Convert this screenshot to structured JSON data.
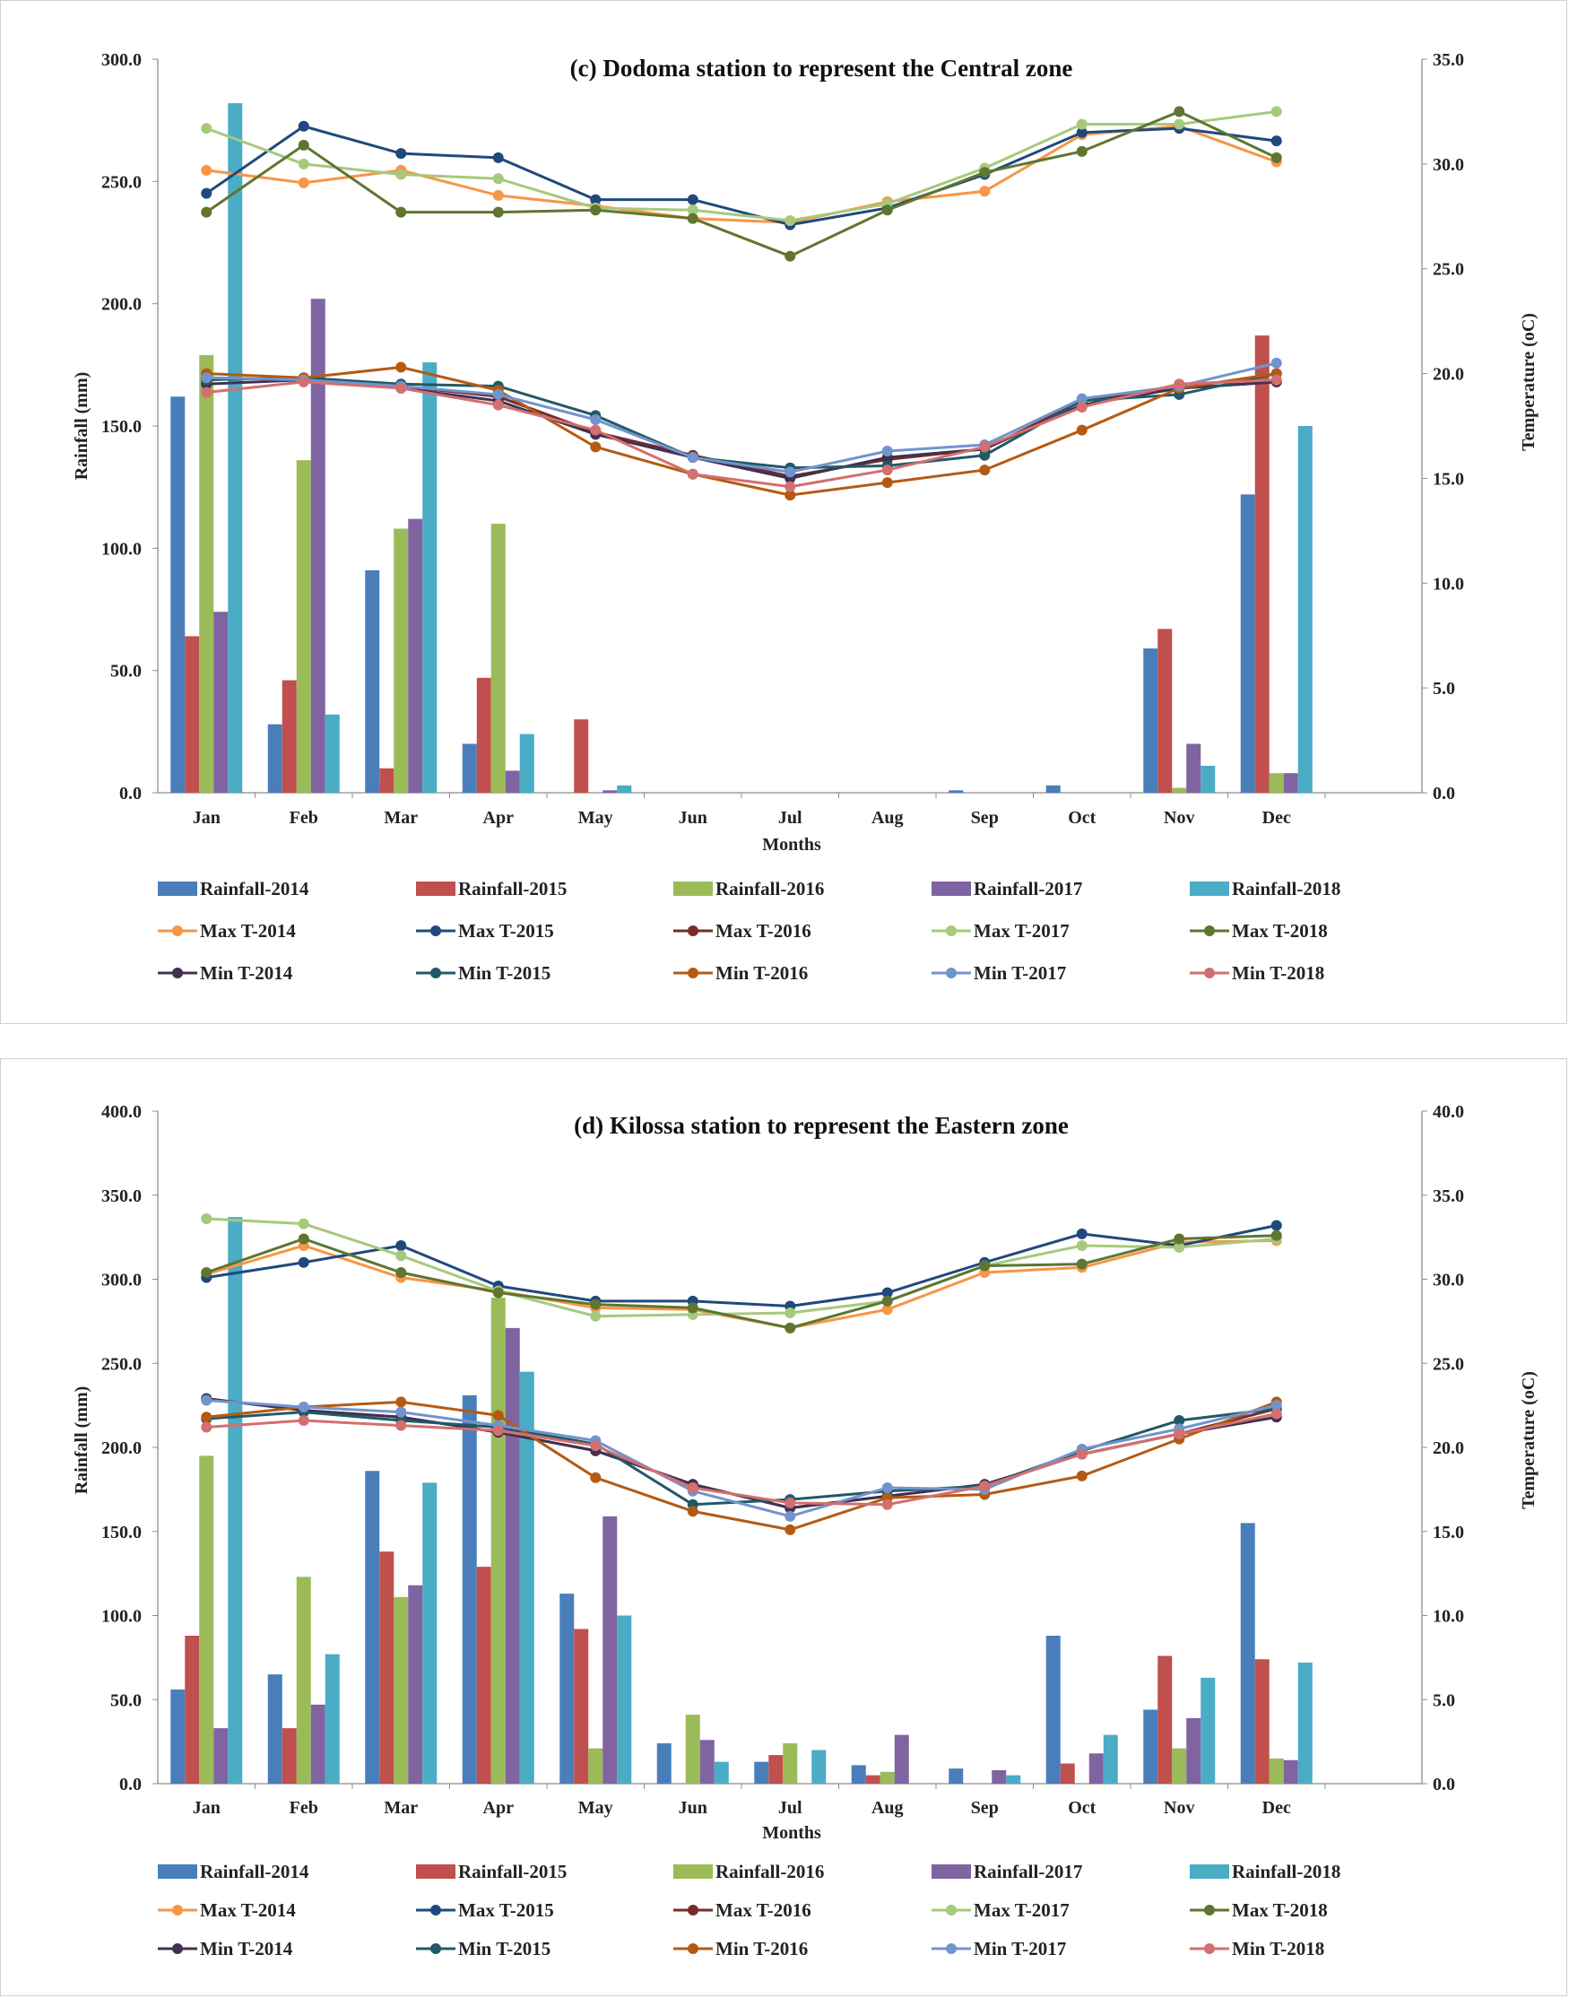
{
  "chart_data": [
    {
      "type": "bar",
      "title": "(c) Dodoma station to represent the Central zone",
      "xlabel": "Months",
      "ylabel": "Rainfall (mm)",
      "y2label": "Temperature (oC)",
      "ylim": [
        0,
        300
      ],
      "y2lim": [
        0,
        35
      ],
      "yticks": [
        "0.0",
        "50.0",
        "100.0",
        "150.0",
        "200.0",
        "250.0",
        "300.0"
      ],
      "y2ticks": [
        "0.0",
        "5.0",
        "10.0",
        "15.0",
        "20.0",
        "25.0",
        "30.0",
        "35.0"
      ],
      "categories": [
        "Jan",
        "Feb",
        "Mar",
        "Apr",
        "May",
        "Jun",
        "Jul",
        "Aug",
        "Sep",
        "Oct",
        "Nov",
        "Dec"
      ],
      "legend_position": "bottom",
      "bar_series": [
        {
          "name": "Rainfall-2014",
          "color": "#4a7ebb",
          "values": [
            162,
            28,
            91,
            20,
            0,
            0,
            0,
            0,
            1,
            3,
            59,
            122
          ]
        },
        {
          "name": "Rainfall-2015",
          "color": "#c0504d",
          "values": [
            64,
            46,
            10,
            47,
            30,
            0,
            0,
            0,
            0,
            0,
            67,
            187
          ]
        },
        {
          "name": "Rainfall-2016",
          "color": "#9bbb59",
          "values": [
            179,
            136,
            108,
            110,
            0,
            0,
            0,
            0,
            0,
            0,
            2,
            8
          ]
        },
        {
          "name": "Rainfall-2017",
          "color": "#8064a2",
          "values": [
            74,
            202,
            112,
            9,
            1,
            0,
            0,
            0,
            0,
            0,
            20,
            8
          ]
        },
        {
          "name": "Rainfall-2018",
          "color": "#4bacc6",
          "values": [
            282,
            32,
            176,
            24,
            3,
            0,
            0,
            0,
            0,
            0,
            11,
            150
          ]
        }
      ],
      "line_series": [
        {
          "name": "Max T-2014",
          "color": "#f79646",
          "values": [
            29.7,
            29.1,
            29.7,
            28.5,
            28.0,
            27.4,
            27.2,
            28.2,
            28.7,
            31.4,
            31.8,
            30.1
          ]
        },
        {
          "name": "Max T-2015",
          "color": "#1f497d",
          "values": [
            28.6,
            31.8,
            30.5,
            30.3,
            28.3,
            28.3,
            27.1,
            27.9,
            29.5,
            31.5,
            31.7,
            31.1
          ]
        },
        {
          "name": "Max T-2016",
          "color": "#772c2a",
          "values": [
            19.8,
            19.7,
            19.4,
            18.9,
            17.2,
            16.1,
            15.1,
            15.9,
            16.4,
            18.7,
            19.3,
            19.6
          ]
        },
        {
          "name": "Max T-2017",
          "color": "#a6c97c",
          "values": [
            31.7,
            30.0,
            29.5,
            29.3,
            27.9,
            27.8,
            27.3,
            28.1,
            29.8,
            31.9,
            31.9,
            32.5
          ]
        },
        {
          "name": "Max T-2018",
          "color": "#5f7530",
          "values": [
            27.7,
            30.9,
            27.7,
            27.7,
            27.8,
            27.4,
            25.6,
            27.8,
            29.6,
            30.6,
            32.5,
            30.3
          ]
        },
        {
          "name": "Min T-2014",
          "color": "#403152",
          "values": [
            19.5,
            19.7,
            19.3,
            18.7,
            17.1,
            16.0,
            15.0,
            16.0,
            16.4,
            18.5,
            19.3,
            19.6
          ]
        },
        {
          "name": "Min T-2015",
          "color": "#215968",
          "values": [
            19.7,
            19.8,
            19.5,
            19.4,
            18.0,
            16.0,
            15.5,
            15.6,
            16.1,
            18.7,
            19.0,
            20.0
          ]
        },
        {
          "name": "Min T-2016",
          "color": "#b55a12",
          "values": [
            20.0,
            19.8,
            20.3,
            19.2,
            16.5,
            15.2,
            14.2,
            14.8,
            15.4,
            17.3,
            19.3,
            20.0
          ]
        },
        {
          "name": "Min T-2017",
          "color": "#7194cd",
          "values": [
            19.8,
            19.7,
            19.4,
            19.0,
            17.8,
            16.0,
            15.3,
            16.3,
            16.6,
            18.8,
            19.4,
            20.5
          ]
        },
        {
          "name": "Min T-2018",
          "color": "#d36f6f",
          "values": [
            19.1,
            19.6,
            19.3,
            18.5,
            17.3,
            15.2,
            14.6,
            15.4,
            16.5,
            18.4,
            19.5,
            19.7
          ]
        }
      ]
    },
    {
      "type": "bar",
      "title": "(d) Kilossa station to represent the Eastern zone",
      "xlabel": "Months",
      "ylabel": "Rainfall (mm)",
      "y2label": "Temperature (oC)",
      "ylim": [
        0,
        400
      ],
      "y2lim": [
        0,
        40
      ],
      "yticks": [
        "0.0",
        "50.0",
        "100.0",
        "150.0",
        "200.0",
        "250.0",
        "300.0",
        "350.0",
        "400.0"
      ],
      "y2ticks": [
        "0.0",
        "5.0",
        "10.0",
        "15.0",
        "20.0",
        "25.0",
        "30.0",
        "35.0",
        "40.0"
      ],
      "categories": [
        "Jan",
        "Feb",
        "Mar",
        "Apr",
        "May",
        "Jun",
        "Jul",
        "Aug",
        "Sep",
        "Oct",
        "Nov",
        "Dec"
      ],
      "legend_position": "bottom",
      "bar_series": [
        {
          "name": "Rainfall-2014",
          "color": "#4a7ebb",
          "values": [
            56,
            65,
            186,
            231,
            113,
            24,
            13,
            11,
            9,
            88,
            44,
            155
          ]
        },
        {
          "name": "Rainfall-2015",
          "color": "#c0504d",
          "values": [
            88,
            33,
            138,
            129,
            92,
            0,
            17,
            5,
            0,
            12,
            76,
            74
          ]
        },
        {
          "name": "Rainfall-2016",
          "color": "#9bbb59",
          "values": [
            195,
            123,
            111,
            289,
            21,
            41,
            24,
            7,
            0,
            0,
            21,
            15
          ]
        },
        {
          "name": "Rainfall-2017",
          "color": "#8064a2",
          "values": [
            33,
            47,
            118,
            271,
            159,
            26,
            0,
            29,
            8,
            18,
            39,
            14
          ]
        },
        {
          "name": "Rainfall-2018",
          "color": "#4bacc6",
          "values": [
            337,
            77,
            179,
            245,
            100,
            13,
            20,
            0,
            5,
            29,
            63,
            72
          ]
        }
      ],
      "line_series": [
        {
          "name": "Max T-2014",
          "color": "#f79646",
          "values": [
            30.3,
            32.0,
            30.1,
            29.3,
            28.3,
            28.2,
            27.1,
            28.2,
            30.4,
            30.7,
            32.2,
            32.3
          ]
        },
        {
          "name": "Max T-2015",
          "color": "#1f497d",
          "values": [
            30.1,
            31.0,
            32.0,
            29.6,
            28.7,
            28.7,
            28.4,
            29.2,
            31.0,
            32.7,
            32.0,
            33.2
          ]
        },
        {
          "name": "Max T-2016",
          "color": "#772c2a",
          "values": [
            22.9,
            22.2,
            21.8,
            20.9,
            19.8,
            17.8,
            16.4,
            17.1,
            17.8,
            19.6,
            20.8,
            22.3
          ]
        },
        {
          "name": "Max T-2017",
          "color": "#a6c97c",
          "values": [
            33.6,
            33.3,
            31.4,
            29.3,
            27.8,
            27.9,
            28.0,
            28.7,
            30.8,
            32.0,
            31.9,
            32.4
          ]
        },
        {
          "name": "Max T-2018",
          "color": "#5f7530",
          "values": [
            30.4,
            32.4,
            30.4,
            29.2,
            28.5,
            28.3,
            27.1,
            28.7,
            30.8,
            30.9,
            32.4,
            32.6
          ]
        },
        {
          "name": "Min T-2014",
          "color": "#403152",
          "values": [
            22.9,
            22.2,
            21.8,
            20.9,
            19.8,
            17.8,
            16.4,
            17.1,
            17.8,
            19.6,
            20.8,
            21.8
          ]
        },
        {
          "name": "Min T-2015",
          "color": "#215968",
          "values": [
            21.7,
            22.1,
            21.6,
            21.2,
            20.2,
            16.6,
            16.9,
            17.4,
            17.7,
            19.8,
            21.6,
            22.3
          ]
        },
        {
          "name": "Min T-2016",
          "color": "#b55a12",
          "values": [
            21.8,
            22.4,
            22.7,
            21.9,
            18.2,
            16.2,
            15.1,
            17.0,
            17.2,
            18.3,
            20.5,
            22.7
          ]
        },
        {
          "name": "Min T-2017",
          "color": "#7194cd",
          "values": [
            22.8,
            22.4,
            22.1,
            21.3,
            20.4,
            17.4,
            15.9,
            17.6,
            17.5,
            19.9,
            21.1,
            22.5
          ]
        },
        {
          "name": "Min T-2018",
          "color": "#d36f6f",
          "values": [
            21.2,
            21.6,
            21.3,
            21.0,
            20.1,
            17.6,
            16.7,
            16.6,
            17.7,
            19.6,
            20.8,
            22.0
          ]
        }
      ]
    }
  ]
}
